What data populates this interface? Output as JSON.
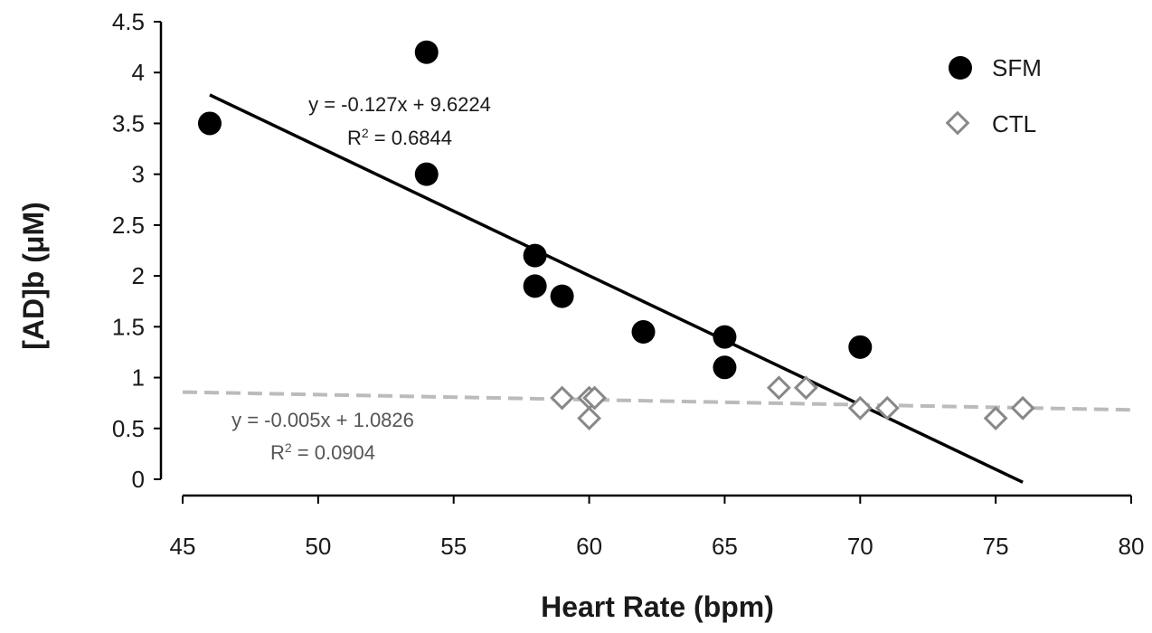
{
  "chart_data": {
    "type": "scatter",
    "xlabel": "Heart Rate (bpm)",
    "ylabel": "[AD]b (μM)",
    "xlim": [
      45,
      80
    ],
    "ylim": [
      0,
      4.5
    ],
    "xticks": [
      "45",
      "50",
      "55",
      "60",
      "65",
      "70",
      "75",
      "80"
    ],
    "yticks": [
      "0",
      "0.5",
      "1",
      "1.5",
      "2",
      "2.5",
      "3",
      "3.5",
      "4",
      "4.5"
    ],
    "series": [
      {
        "name": "SFM",
        "marker": "filled-circle",
        "color": "#000000",
        "points": [
          [
            46,
            3.5
          ],
          [
            54,
            4.2
          ],
          [
            54,
            3.0
          ],
          [
            58,
            2.2
          ],
          [
            58,
            1.9
          ],
          [
            59,
            1.8
          ],
          [
            62,
            1.45
          ],
          [
            65,
            1.4
          ],
          [
            65,
            1.1
          ],
          [
            70,
            1.3
          ]
        ],
        "trendline": {
          "slope": -0.127,
          "intercept": 9.6224,
          "x_range": [
            46,
            76
          ],
          "style": "solid",
          "color": "#000000",
          "equation": "y = -0.127x + 9.6224",
          "r2_prefix": "R",
          "r2_sup": "2",
          "r2_value": " = 0.6844"
        }
      },
      {
        "name": "CTL",
        "marker": "open-diamond",
        "color": "#888888",
        "points": [
          [
            59,
            0.8
          ],
          [
            60,
            0.8
          ],
          [
            60,
            0.6
          ],
          [
            60.2,
            0.8
          ],
          [
            67,
            0.9
          ],
          [
            68,
            0.9
          ],
          [
            70,
            0.7
          ],
          [
            71,
            0.7
          ],
          [
            75,
            0.6
          ],
          [
            76,
            0.7
          ]
        ],
        "trendline": {
          "slope": -0.005,
          "intercept": 1.0826,
          "x_range": [
            45,
            80
          ],
          "style": "dashed",
          "color": "#bbbbbb",
          "equation": "y = -0.005x + 1.0826",
          "r2_prefix": "R",
          "r2_sup": "2",
          "r2_value": " = 0.0904"
        }
      }
    ],
    "legend": {
      "position": "top-right",
      "entries": [
        "SFM",
        "CTL"
      ]
    }
  }
}
